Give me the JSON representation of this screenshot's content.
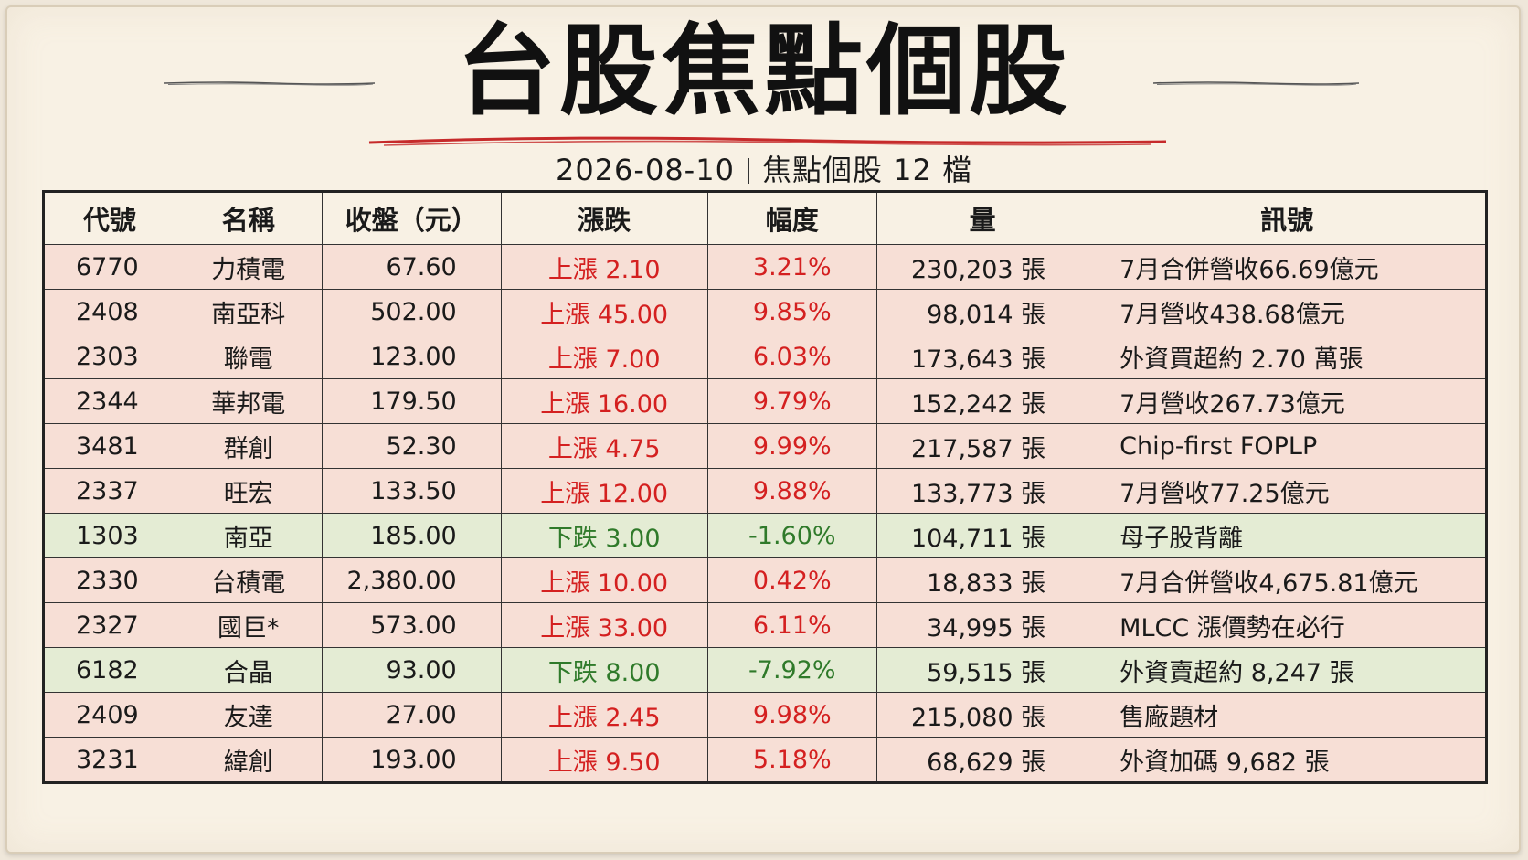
{
  "header": {
    "title": "台股焦點個股",
    "date": "2026-08-10",
    "summary": "焦點個股 12 檔"
  },
  "colors": {
    "up": "#d42020",
    "down": "#2f7a2a",
    "row_up_bg": "#f7dfd6",
    "row_down_bg": "#e4ecd4"
  },
  "table": {
    "columns": [
      "代號",
      "名稱",
      "收盤（元）",
      "漲跌",
      "幅度",
      "量",
      "訊號"
    ],
    "rows": [
      {
        "code": "6770",
        "name": "力積電",
        "close": "67.60",
        "change": "上漲 2.10",
        "pct": "3.21%",
        "volume": "230,203 張",
        "signal": "7月合併營收66.69億元",
        "dir": "up"
      },
      {
        "code": "2408",
        "name": "南亞科",
        "close": "502.00",
        "change": "上漲 45.00",
        "pct": "9.85%",
        "volume": "98,014 張",
        "signal": "7月營收438.68億元",
        "dir": "up"
      },
      {
        "code": "2303",
        "name": "聯電",
        "close": "123.00",
        "change": "上漲 7.00",
        "pct": "6.03%",
        "volume": "173,643 張",
        "signal": "外資買超約 2.70 萬張",
        "dir": "up"
      },
      {
        "code": "2344",
        "name": "華邦電",
        "close": "179.50",
        "change": "上漲 16.00",
        "pct": "9.79%",
        "volume": "152,242 張",
        "signal": "7月營收267.73億元",
        "dir": "up"
      },
      {
        "code": "3481",
        "name": "群創",
        "close": "52.30",
        "change": "上漲 4.75",
        "pct": "9.99%",
        "volume": "217,587 張",
        "signal": "Chip-first FOPLP",
        "dir": "up"
      },
      {
        "code": "2337",
        "name": "旺宏",
        "close": "133.50",
        "change": "上漲 12.00",
        "pct": "9.88%",
        "volume": "133,773 張",
        "signal": "7月營收77.25億元",
        "dir": "up"
      },
      {
        "code": "1303",
        "name": "南亞",
        "close": "185.00",
        "change": "下跌 3.00",
        "pct": "-1.60%",
        "volume": "104,711 張",
        "signal": "母子股背離",
        "dir": "down"
      },
      {
        "code": "2330",
        "name": "台積電",
        "close": "2,380.00",
        "change": "上漲 10.00",
        "pct": "0.42%",
        "volume": "18,833 張",
        "signal": "7月合併營收4,675.81億元",
        "dir": "up"
      },
      {
        "code": "2327",
        "name": "國巨*",
        "close": "573.00",
        "change": "上漲 33.00",
        "pct": "6.11%",
        "volume": "34,995 張",
        "signal": "MLCC 漲價勢在必行",
        "dir": "up"
      },
      {
        "code": "6182",
        "name": "合晶",
        "close": "93.00",
        "change": "下跌 8.00",
        "pct": "-7.92%",
        "volume": "59,515 張",
        "signal": "外資賣超約 8,247 張",
        "dir": "down"
      },
      {
        "code": "2409",
        "name": "友達",
        "close": "27.00",
        "change": "上漲 2.45",
        "pct": "9.98%",
        "volume": "215,080 張",
        "signal": "售廠題材",
        "dir": "up"
      },
      {
        "code": "3231",
        "name": "緯創",
        "close": "193.00",
        "change": "上漲 9.50",
        "pct": "5.18%",
        "volume": "68,629 張",
        "signal": "外資加碼 9,682 張",
        "dir": "up"
      }
    ]
  }
}
